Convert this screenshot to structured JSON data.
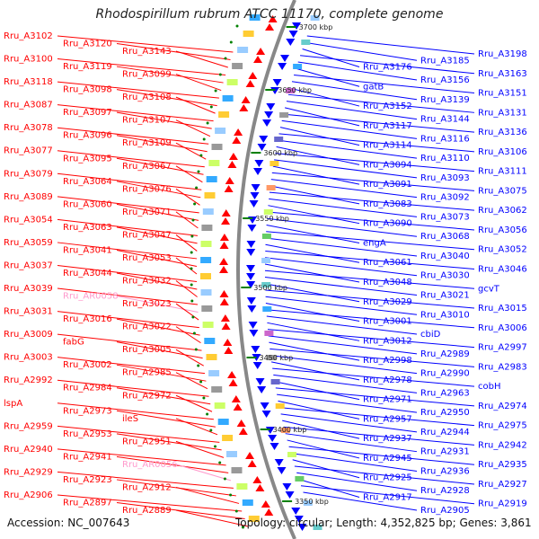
{
  "title": "Rhodospirillum rubrum ATCC 11170, complete genome",
  "footer": {
    "accession": "Accession: NC_007643",
    "topology": "Topology: circular; Length: 4,352,825 bp; Genes: 3,861"
  },
  "colors": {
    "reverse_strand": "#ff0000",
    "forward_strand": "#0000ff",
    "rna_label": "#ff99cc",
    "backbone": "#888888",
    "tick": "#008000"
  },
  "ticks": [
    "3700 kbp",
    "3650 kbp",
    "3600 kbp",
    "3550 kbp",
    "3500 kbp",
    "3450 kbp",
    "3400 kbp",
    "3350 kbp"
  ],
  "left_labels": [
    "Rru_A3102",
    "Rru_A3120",
    "Rru_A3143",
    "Rru_A3100",
    "Rru_A3119",
    "Rru_A3099",
    "Rru_A3118",
    "Rru_A3098",
    "Rru_A3108",
    "Rru_A3087",
    "Rru_A3097",
    "Rru_A3107",
    "Rru_A3078",
    "Rru_A3096",
    "Rru_A3109",
    "Rru_A3077",
    "Rru_A3095",
    "Rru_A3067",
    "Rru_A3079",
    "Rru_A3064",
    "Rru_A3076",
    "Rru_A3089",
    "Rru_A3060",
    "Rru_A3071",
    "Rru_A3054",
    "Rru_A3063",
    "Rru_A3047",
    "Rru_A3059",
    "Rru_A3041",
    "Rru_A3053",
    "Rru_A3037",
    "Rru_A3044",
    "Rru_A3032",
    "Rru_A3039",
    "Rru_AR0058",
    "Rru_A3023",
    "Rru_A3031",
    "Rru_A3016",
    "Rru_A3022",
    "Rru_A3009",
    "fabG",
    "Rru_A3005",
    "Rru_A3003",
    "Rru_A3002",
    "Rru_A2985",
    "Rru_A2992",
    "Rru_A2984",
    "Rru_A2972",
    "lspA",
    "Rru_A2973",
    "ileS",
    "Rru_A2959",
    "Rru_A2953",
    "Rru_A2951",
    "Rru_A2940",
    "Rru_A2941",
    "Rru_AR0056",
    "Rru_A2929",
    "Rru_A2923",
    "Rru_A2912",
    "Rru_A2906",
    "Rru_A2897",
    "Rru_A2889"
  ],
  "right_labels": [
    "Rru_A3198",
    "Rru_A3185",
    "Rru_A3176",
    "Rru_A3163",
    "Rru_A3156",
    "gatB",
    "Rru_A3151",
    "Rru_A3139",
    "Rru_A3152",
    "Rru_A3131",
    "Rru_A3144",
    "Rru_A3117",
    "Rru_A3136",
    "Rru_A3116",
    "Rru_A3114",
    "Rru_A3106",
    "Rru_A3110",
    "Rru_A3094",
    "Rru_A3111",
    "Rru_A3093",
    "Rru_A3091",
    "Rru_A3075",
    "Rru_A3092",
    "Rru_A3083",
    "Rru_A3062",
    "Rru_A3073",
    "Rru_A3090",
    "Rru_A3056",
    "Rru_A3068",
    "engA",
    "Rru_A3052",
    "Rru_A3040",
    "Rru_A3061",
    "Rru_A3046",
    "Rru_A3030",
    "Rru_A3048",
    "gcvT",
    "Rru_A3021",
    "Rru_A3029",
    "Rru_A3015",
    "Rru_A3010",
    "Rru_A3001",
    "Rru_A3006",
    "cbiD",
    "Rru_A3012",
    "Rru_A2997",
    "Rru_A2989",
    "Rru_A2998",
    "Rru_A2983",
    "Rru_A2990",
    "Rru_A2978",
    "cobH",
    "Rru_A2963",
    "Rru_A2971",
    "Rru_A2974",
    "Rru_A2950",
    "Rru_A2957",
    "Rru_A2975",
    "Rru_A2944",
    "Rru_A2937",
    "Rru_A2942",
    "Rru_A2931",
    "Rru_A2945",
    "Rru_A2935",
    "Rru_A2936",
    "Rru_A2925",
    "Rru_A2927",
    "Rru_A2928",
    "Rru_A2917",
    "Rru_A2919",
    "Rru_A2905"
  ]
}
